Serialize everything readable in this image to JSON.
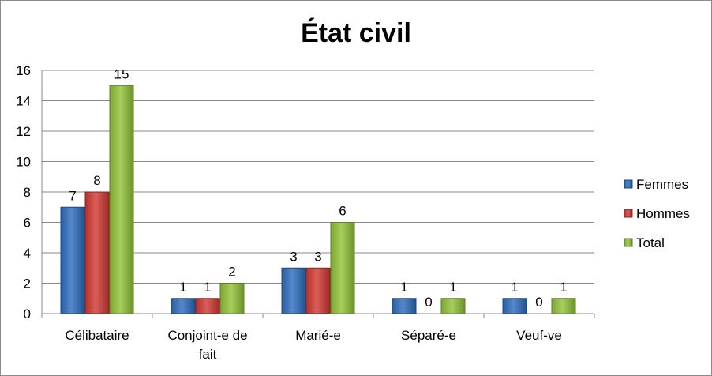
{
  "chart_data": {
    "type": "bar",
    "title": "État civil",
    "xlabel": "",
    "ylabel": "",
    "categories": [
      "Célibataire",
      "Conjoint-e de fait",
      "Marié-e",
      "Séparé-e",
      "Veuf-ve"
    ],
    "series": [
      {
        "name": "Femmes",
        "values": [
          7,
          1,
          3,
          1,
          1
        ],
        "color": "#2f6ebf"
      },
      {
        "name": "Hommes",
        "values": [
          8,
          1,
          3,
          0,
          0
        ],
        "color": "#d33a34"
      },
      {
        "name": "Total",
        "values": [
          15,
          2,
          6,
          1,
          1
        ],
        "color": "#93c33a"
      }
    ],
    "ylim": [
      0,
      16
    ],
    "yticks": [
      0,
      2,
      4,
      6,
      8,
      10,
      12,
      14,
      16
    ],
    "grid": true,
    "legend_position": "right",
    "data_labels": true
  }
}
